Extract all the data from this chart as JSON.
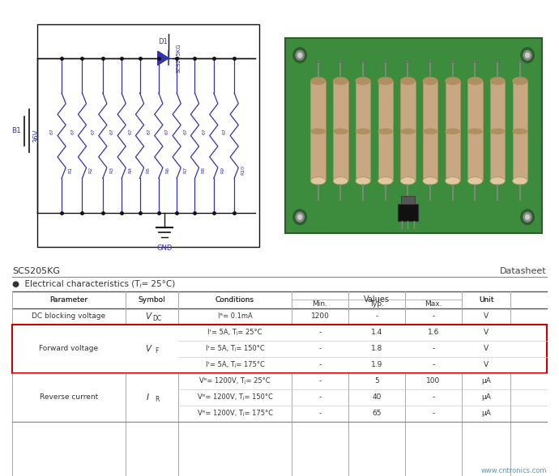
{
  "title_left": "SCS205KG",
  "title_right": "Datasheet",
  "subtitle": "●  Electrical characteristics (Tⱼ= 25°C)",
  "bg_color": "#ffffff",
  "watermark": "www.cntronics.com",
  "watermark_color": "#2e86c1",
  "schematic_color": "#3333aa",
  "table_rows": [
    {
      "param": "DC blocking voltage",
      "symbol": "V",
      "symbol_sub": "DC",
      "conditions": [
        "Iᴿ= 0.1mA"
      ],
      "min": [
        "1200"
      ],
      "typ": [
        "-"
      ],
      "max": [
        "-"
      ],
      "unit": [
        "V"
      ],
      "highlight": false
    },
    {
      "param": "Forward voltage",
      "symbol": "V",
      "symbol_sub": "F",
      "conditions": [
        "Iᶠ= 5A, Tⱼ= 25°C",
        "Iᶠ= 5A, Tⱼ= 150°C",
        "Iᶠ= 5A, Tⱼ= 175°C"
      ],
      "min": [
        "-",
        "-",
        "-"
      ],
      "typ": [
        "1.4",
        "1.8",
        "1.9"
      ],
      "max": [
        "1.6",
        "-",
        "-"
      ],
      "unit": [
        "V",
        "V",
        "V"
      ],
      "highlight": true
    },
    {
      "param": "Reverse current",
      "symbol": "I",
      "symbol_sub": "R",
      "conditions": [
        "Vᴿ= 1200V, Tⱼ= 25°C",
        "Vᴿ= 1200V, Tⱼ= 150°C",
        "Vᴿ= 1200V, Tⱼ= 175°C"
      ],
      "min": [
        "-",
        "-",
        "-"
      ],
      "typ": [
        "5",
        "40",
        "65"
      ],
      "max": [
        "100",
        "-",
        "-"
      ],
      "unit": [
        "μA",
        "μA",
        "μA"
      ],
      "highlight": false
    }
  ]
}
